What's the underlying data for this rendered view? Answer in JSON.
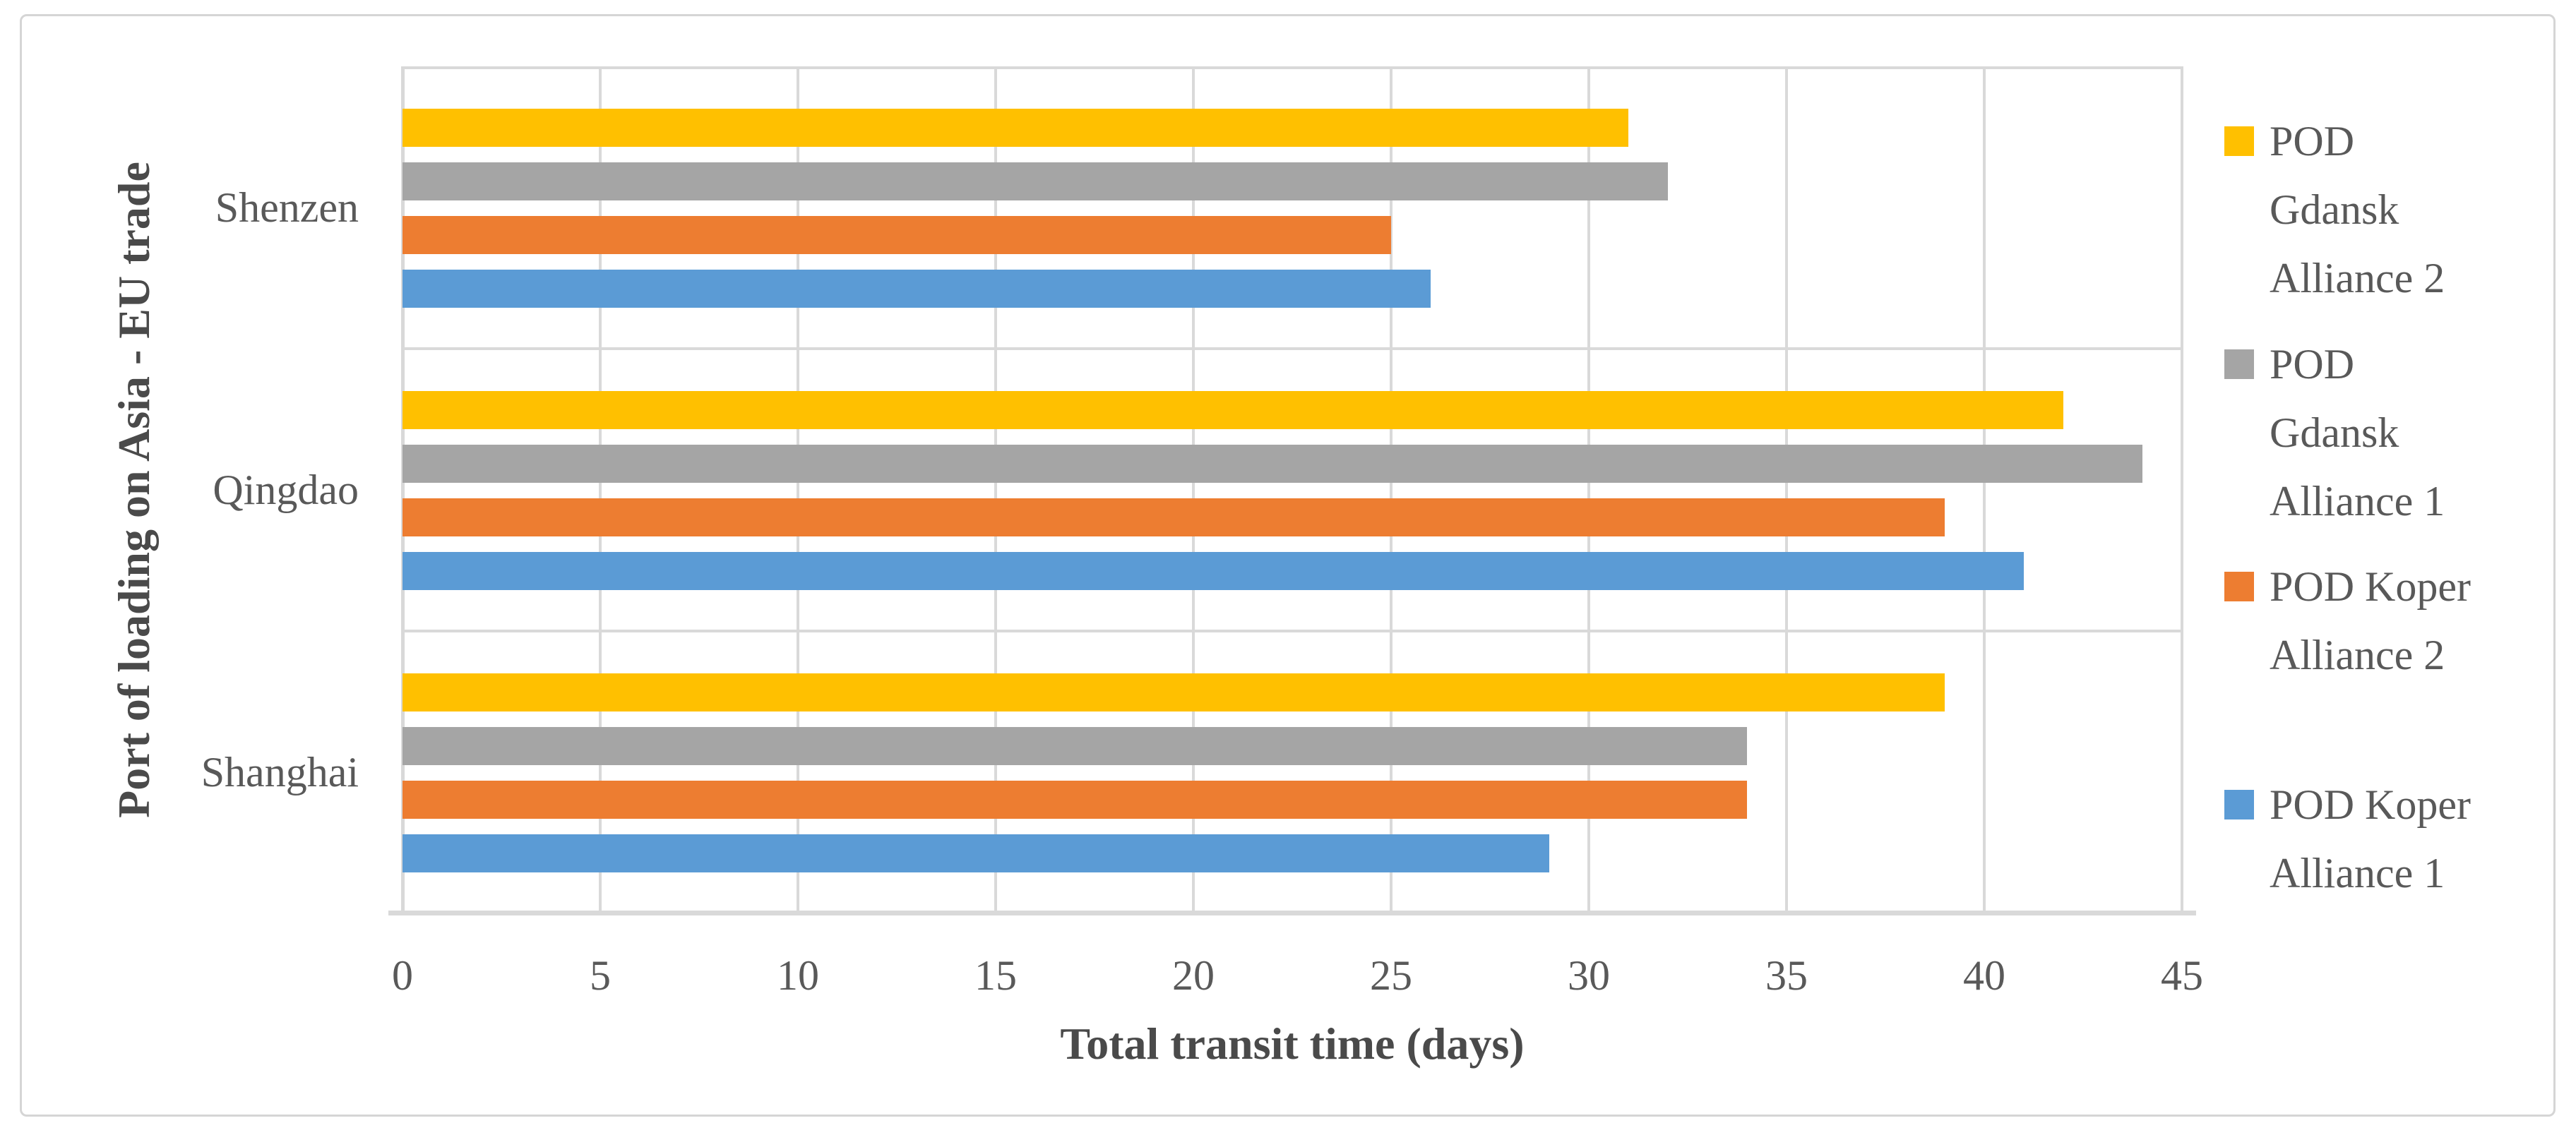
{
  "figure": {
    "background": "#FFFFFF",
    "border_color": "#D5D5D5"
  },
  "chart_data": {
    "type": "bar",
    "orientation": "horizontal",
    "title": "",
    "xlabel": "Total transit time (days)",
    "ylabel": "Port of loading on Asia - EU trade",
    "categories": [
      "Shenzen",
      "Qingdao",
      "Shanghai"
    ],
    "series": [
      {
        "name": "POD Gdansk Alliance 2",
        "legend_lines": "POD\nGdansk\nAlliance 2",
        "color": "#FFC000",
        "values": [
          31,
          42,
          39
        ]
      },
      {
        "name": "POD Gdansk Alliance 1",
        "legend_lines": "POD\nGdansk\nAlliance 1",
        "color": "#A5A5A5",
        "values": [
          32,
          44,
          34
        ]
      },
      {
        "name": "POD Koper Alliance 2",
        "legend_lines": "POD Koper\nAlliance 2",
        "color": "#ED7D31",
        "values": [
          25,
          39,
          34
        ]
      },
      {
        "name": "POD Koper Alliance 1",
        "legend_lines": "POD Koper\nAlliance 1",
        "color": "#5B9BD5",
        "values": [
          26,
          41,
          29
        ]
      }
    ],
    "x_ticks": [
      0,
      5,
      10,
      15,
      20,
      25,
      30,
      35,
      40,
      45
    ],
    "xlim": [
      0,
      45
    ],
    "grid": true,
    "gridline_color": "#D9D9D9",
    "text_color": "#595959",
    "axis_title_color": "#4a4a4a",
    "legend_position": "right"
  }
}
